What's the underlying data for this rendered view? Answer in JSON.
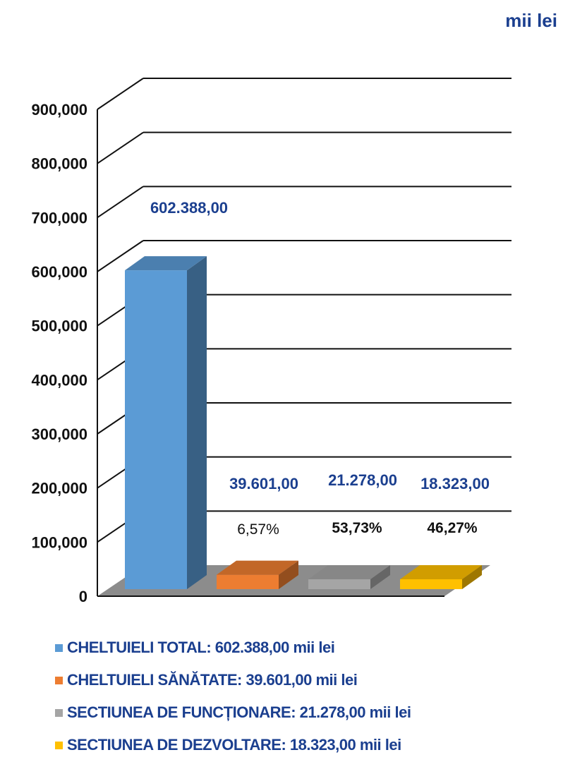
{
  "unit_label": "mii lei",
  "chart_data": {
    "type": "bar",
    "categories": [
      "CHELTUIELI TOTAL",
      "CHELTUIELI SĂNĂTATE",
      "SECTIUNEA DE FUNCȚIONARE",
      "SECTIUNEA DE DEZVOLTARE"
    ],
    "values": [
      602388,
      39601,
      21278,
      18323
    ],
    "value_labels": [
      "602.388,00",
      "39.601,00",
      "21.278,00",
      "18.323,00"
    ],
    "percent_labels": [
      "",
      "6,57%",
      "53,73%",
      "46,27%"
    ],
    "colors": [
      "#5b9bd5",
      "#ed7d31",
      "#a5a5a5",
      "#ffc000"
    ],
    "ylim": [
      0,
      900000
    ],
    "yticks": [
      0,
      100000,
      200000,
      300000,
      400000,
      500000,
      600000,
      700000,
      800000,
      900000
    ],
    "ytick_labels": [
      "0",
      "100,000",
      "200,000",
      "300,000",
      "400,000",
      "500,000",
      "600,000",
      "700,000",
      "800,000",
      "900,000"
    ],
    "grid": true,
    "style": "3d",
    "legend_position": "bottom"
  },
  "legend": {
    "items": [
      {
        "label": "CHELTUIELI TOTAL: 602.388,00 mii lei",
        "color": "#5b9bd5"
      },
      {
        "label": "CHELTUIELI SĂNĂTATE: 39.601,00 mii lei",
        "color": "#ed7d31"
      },
      {
        "label": "SECTIUNEA DE FUNCȚIONARE: 21.278,00 mii lei",
        "color": "#a5a5a5"
      },
      {
        "label": "SECTIUNEA DE DEZVOLTARE: 18.323,00 mii lei",
        "color": "#ffc000"
      }
    ]
  }
}
